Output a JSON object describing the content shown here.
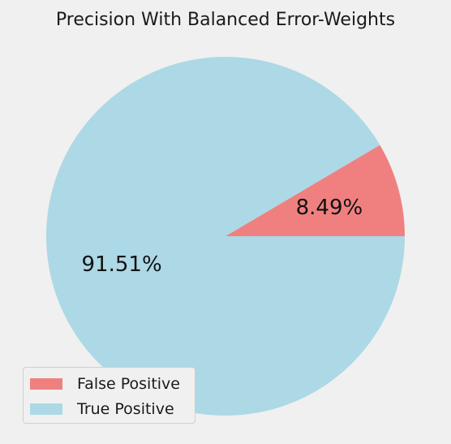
{
  "chart_data": {
    "type": "pie",
    "title": "Precision With Balanced Error-Weights",
    "slices": [
      {
        "label": "False Positive",
        "value": 8.49,
        "display": "8.49%",
        "color": "#f08080"
      },
      {
        "label": "True Positive",
        "value": 91.51,
        "display": "91.51%",
        "color": "#add8e6"
      }
    ],
    "start_angle_deg": 0,
    "direction": "counterclockwise",
    "legend": {
      "placement": "lower-left",
      "entries": [
        "False Positive",
        "True Positive"
      ]
    }
  }
}
